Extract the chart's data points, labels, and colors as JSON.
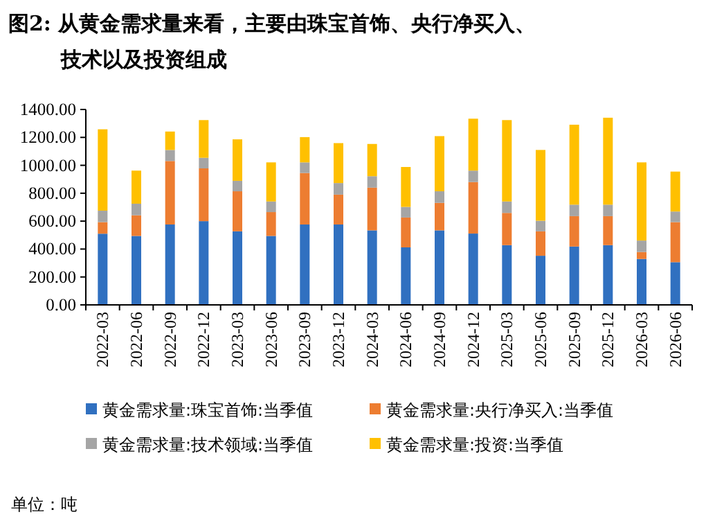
{
  "chart_data": {
    "type": "bar",
    "stacked": true,
    "title": "图2: 从黄金需求量来看，主要由珠宝首饰、央行净买入、技术以及投资组成",
    "categories": [
      "2022-03",
      "2022-06",
      "2022-09",
      "2022-12",
      "2023-03",
      "2023-06",
      "2023-09",
      "2023-12",
      "2024-03",
      "2024-06",
      "2024-09",
      "2024-12",
      "2025-03",
      "2025-06",
      "2025-09",
      "2025-12",
      "2026-03",
      "2026-06"
    ],
    "series": [
      {
        "name": "黄金需求量:珠宝首饰:当季值",
        "color": "#3070c0",
        "values": [
          510,
          494,
          576,
          600,
          527,
          494,
          576,
          576,
          534,
          412,
          534,
          511,
          428,
          352,
          418,
          428,
          329,
          306
        ]
      },
      {
        "name": "黄金需求量:央行净买入:当季值",
        "color": "#ed7d31",
        "values": [
          83,
          148,
          455,
          378,
          287,
          171,
          369,
          214,
          306,
          214,
          197,
          369,
          231,
          175,
          218,
          208,
          50,
          287
        ]
      },
      {
        "name": "黄金需求量:技术领域:当季值",
        "color": "#a5a5a5",
        "values": [
          82,
          83,
          79,
          76,
          75,
          76,
          76,
          83,
          82,
          76,
          83,
          82,
          82,
          76,
          82,
          82,
          82,
          76
        ]
      },
      {
        "name": "黄金需求量:投资:当季值",
        "color": "#ffc000",
        "values": [
          583,
          237,
          132,
          270,
          297,
          280,
          181,
          286,
          231,
          286,
          395,
          372,
          583,
          507,
          573,
          623,
          560,
          286
        ]
      }
    ],
    "ylim": [
      0,
      1400
    ],
    "yticks": [
      {
        "value": 0,
        "label": "0.00"
      },
      {
        "value": 200,
        "label": "200.00"
      },
      {
        "value": 400,
        "label": "400.00"
      },
      {
        "value": 600,
        "label": "600.00"
      },
      {
        "value": 800,
        "label": "800.00"
      },
      {
        "value": 1000,
        "label": "1000.00"
      },
      {
        "value": 1200,
        "label": "1200.00"
      },
      {
        "value": 1400,
        "label": "1400.00"
      }
    ],
    "legend": "bottom",
    "grid": false,
    "annotations": [
      "单位：吨"
    ]
  }
}
